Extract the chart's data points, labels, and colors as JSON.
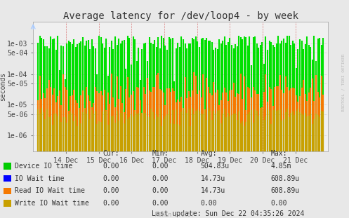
{
  "title": "Average latency for /dev/loop4 - by week",
  "ylabel": "seconds",
  "background_color": "#e8e8e8",
  "plot_background": "#f0f0f0",
  "grid_color": "#cccccc",
  "x_tick_labels": [
    "14 Dec",
    "15 Dec",
    "16 Dec",
    "17 Dec",
    "18 Dec",
    "19 Dec",
    "20 Dec",
    "21 Dec"
  ],
  "x_tick_positions": [
    1,
    2,
    3,
    4,
    5,
    6,
    7,
    8
  ],
  "ylim_min": 3e-07,
  "ylim_max": 0.005,
  "num_bars": 160,
  "green_color": "#00e000",
  "orange_color": "#f57900",
  "yellow_color": "#c8a000",
  "blue_color": "#0000ff",
  "legend_labels": [
    "Device IO time",
    "IO Wait time",
    "Read IO Wait time",
    "Write IO Wait time"
  ],
  "legend_colors": [
    "#00cc00",
    "#0000ff",
    "#f57900",
    "#c8a000"
  ],
  "cur_vals": [
    "0.00",
    "0.00",
    "0.00",
    "0.00"
  ],
  "min_vals": [
    "0.00",
    "0.00",
    "0.00",
    "0.00"
  ],
  "avg_vals": [
    "504.83u",
    "14.73u",
    "14.73u",
    "0.00"
  ],
  "max_vals": [
    "4.85m",
    "608.89u",
    "608.89u",
    "0.00"
  ],
  "last_update": "Last update: Sun Dec 22 04:35:26 2024",
  "munin_version": "Munin 2.0.57",
  "watermark": "RRDTOOL / TOBI OETIKER",
  "title_fontsize": 10,
  "axis_fontsize": 7,
  "legend_fontsize": 7
}
